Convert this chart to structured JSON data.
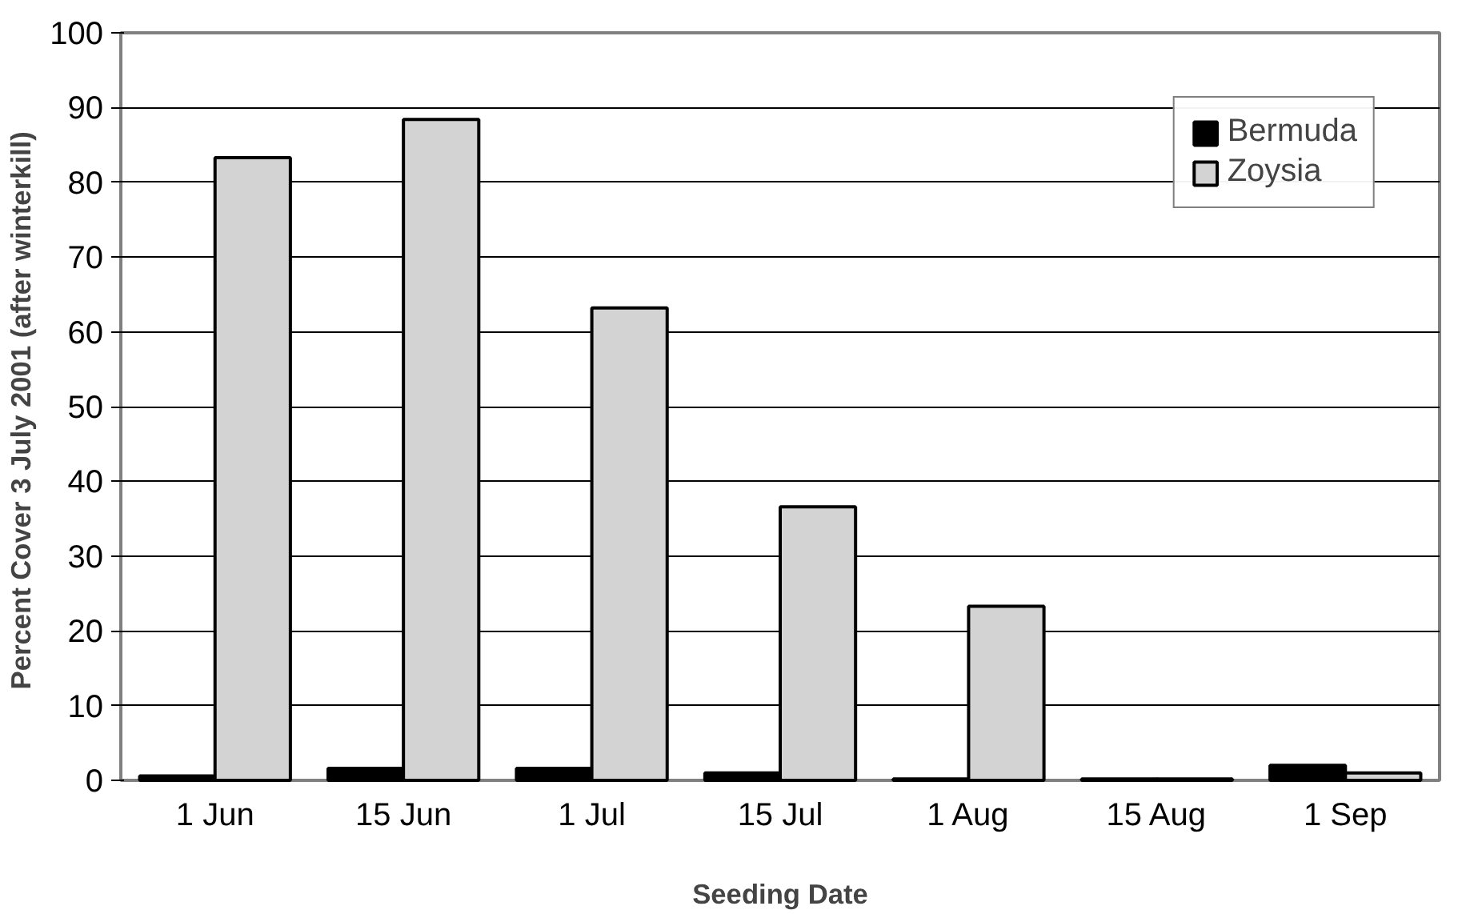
{
  "chart_data": {
    "type": "bar",
    "xlabel": "Seeding Date",
    "ylabel": "Percent Cover  3 July 2001 (after winterkill)",
    "categories": [
      "1 Jun",
      "15 Jun",
      "1 Jul",
      "15 Jul",
      "1 Aug",
      "15 Aug",
      "1 Sep"
    ],
    "series": [
      {
        "name": "Bermuda",
        "color": "#000000",
        "values": [
          0.6,
          1.6,
          1.6,
          1.0,
          0.2,
          0.2,
          2.0
        ]
      },
      {
        "name": "Zoysia",
        "color": "#d3d3d3",
        "values": [
          83.3,
          88.4,
          63.2,
          36.6,
          23.3,
          0.2,
          1.0
        ]
      }
    ],
    "ylim": [
      0,
      100
    ],
    "yticks": [
      0,
      10,
      20,
      30,
      40,
      50,
      60,
      70,
      80,
      90,
      100
    ],
    "grid": "y",
    "legend": "top right"
  }
}
